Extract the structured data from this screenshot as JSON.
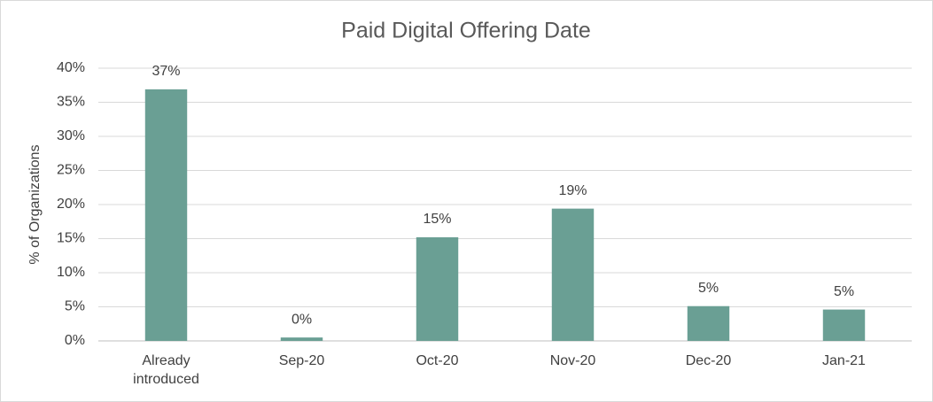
{
  "chart_data": {
    "type": "bar",
    "title": "Paid Digital Offering Date",
    "y_label": "% of Organizations",
    "categories": [
      "Already introduced",
      "Sep-20",
      "Oct-20",
      "Nov-20",
      "Dec-20",
      "Jan-21"
    ],
    "values": [
      36.9,
      0.5,
      15.2,
      19.4,
      5.1,
      4.6
    ],
    "value_labels": [
      "37%",
      "0%",
      "15%",
      "19%",
      "5%",
      "5%"
    ],
    "color": "#6a9f94",
    "ylim": [
      0,
      40
    ],
    "yticks": [
      {
        "value": 0,
        "label": "0%"
      },
      {
        "value": 5,
        "label": "5%"
      },
      {
        "value": 10,
        "label": "10%"
      },
      {
        "value": 15,
        "label": "15%"
      },
      {
        "value": 20,
        "label": "20%"
      },
      {
        "value": 25,
        "label": "25%"
      },
      {
        "value": 30,
        "label": "30%"
      },
      {
        "value": 35,
        "label": "35%"
      },
      {
        "value": 40,
        "label": "40%"
      }
    ],
    "grid": true
  }
}
